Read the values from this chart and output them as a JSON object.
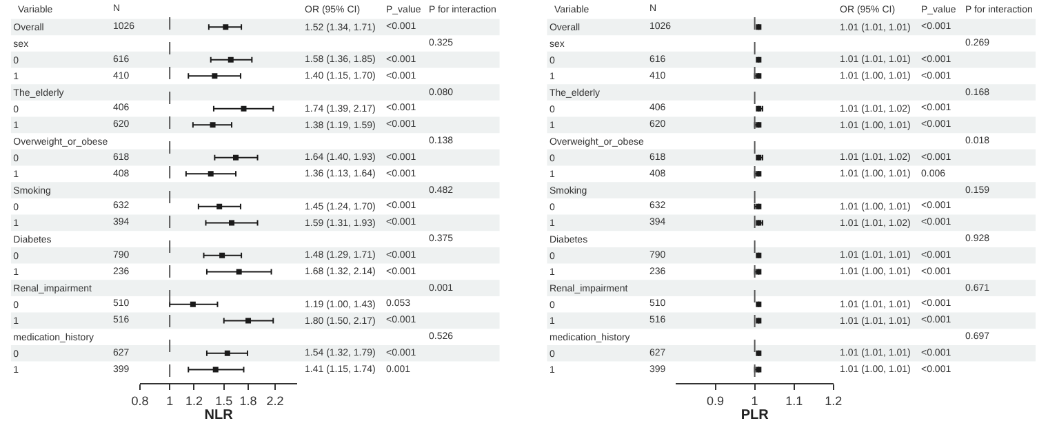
{
  "chart_data": [
    {
      "type": "scatter",
      "orientation": "horizontal",
      "color": "#1a1a1a",
      "marker": "square",
      "grid": false,
      "log": "x",
      "xlabel": "NLR",
      "xlim": [
        0.8,
        2.6
      ],
      "xticks": [
        0.8,
        1,
        1.2,
        1.5,
        1.8,
        2.2
      ],
      "ref_lines": [
        {
          "axis": "x",
          "value": 1,
          "line_style": "dashed",
          "color": "#555555"
        }
      ],
      "categories": [
        "Overall",
        "sex",
        "0",
        "1",
        "The_elderly",
        "0",
        "1",
        "Overweight_or_obese",
        "0",
        "1",
        "Smoking",
        "0",
        "1",
        "Diabetes",
        "0",
        "1",
        "Renal_impairment",
        "0",
        "1",
        "medication_history",
        "0",
        "1"
      ],
      "values": [
        1.52,
        null,
        1.58,
        1.4,
        null,
        1.74,
        1.38,
        null,
        1.64,
        1.36,
        null,
        1.45,
        1.59,
        null,
        1.48,
        1.68,
        null,
        1.19,
        1.8,
        null,
        1.54,
        1.41
      ],
      "errors": [
        [
          1.34,
          1.71
        ],
        null,
        [
          1.36,
          1.85
        ],
        [
          1.15,
          1.7
        ],
        null,
        [
          1.39,
          2.17
        ],
        [
          1.19,
          1.59
        ],
        null,
        [
          1.4,
          1.93
        ],
        [
          1.13,
          1.64
        ],
        null,
        [
          1.24,
          1.7
        ],
        [
          1.31,
          1.93
        ],
        null,
        [
          1.29,
          1.71
        ],
        [
          1.32,
          2.14
        ],
        null,
        [
          1.0,
          1.43
        ],
        [
          1.5,
          2.17
        ],
        null,
        [
          1.32,
          1.79
        ],
        [
          1.15,
          1.74
        ]
      ],
      "value_labels": [
        "1.52 (1.34, 1.71)",
        null,
        "1.58 (1.36, 1.85)",
        "1.40 (1.15, 1.70)",
        null,
        "1.74 (1.39, 2.17)",
        "1.38 (1.19, 1.59)",
        null,
        "1.64 (1.40, 1.93)",
        "1.36 (1.13, 1.64)",
        null,
        "1.45 (1.24, 1.70)",
        "1.59 (1.31, 1.93)",
        null,
        "1.48 (1.29, 1.71)",
        "1.68 (1.32, 2.14)",
        null,
        "1.19 (1.00, 1.43)",
        "1.80 (1.50, 2.17)",
        null,
        "1.54 (1.32, 1.79)",
        "1.41 (1.15, 1.74)"
      ],
      "annotations": [
        "Variable",
        "N",
        "OR (95% CI)",
        "P_value",
        "P for interaction",
        "1026",
        "<0.001",
        "616",
        "<0.001",
        "410",
        "<0.001",
        "406",
        "<0.001",
        "620",
        "<0.001",
        "618",
        "<0.001",
        "408",
        "<0.001",
        "632",
        "<0.001",
        "394",
        "<0.001",
        "790",
        "<0.001",
        "236",
        "<0.001",
        "510",
        "0.053",
        "516",
        "<0.001",
        "627",
        "<0.001",
        "399",
        "0.001",
        "0.325",
        "0.080",
        "0.138",
        "0.482",
        "0.375",
        "0.001",
        "0.526"
      ]
    },
    {
      "type": "scatter",
      "orientation": "horizontal",
      "color": "#1a1a1a",
      "marker": "square",
      "grid": false,
      "xlabel": "PLR",
      "xlim": [
        0.8,
        1.2
      ],
      "xticks": [
        0.9,
        1,
        1.1,
        1.2
      ],
      "ref_lines": [
        {
          "axis": "x",
          "value": 1,
          "line_style": "dashed",
          "color": "#555555"
        }
      ],
      "categories": [
        "Overall",
        "sex",
        "0",
        "1",
        "The_elderly",
        "0",
        "1",
        "Overweight_or_obese",
        "0",
        "1",
        "Smoking",
        "0",
        "1",
        "Diabetes",
        "0",
        "1",
        "Renal_impairment",
        "0",
        "1",
        "medication_history",
        "0",
        "1"
      ],
      "values": [
        1.01,
        null,
        1.01,
        1.01,
        null,
        1.01,
        1.01,
        null,
        1.01,
        1.01,
        null,
        1.01,
        1.01,
        null,
        1.01,
        1.01,
        null,
        1.01,
        1.01,
        null,
        1.01,
        1.01
      ],
      "errors": [
        [
          1.01,
          1.01
        ],
        null,
        [
          1.01,
          1.01
        ],
        [
          1.0,
          1.01
        ],
        null,
        [
          1.01,
          1.02
        ],
        [
          1.0,
          1.01
        ],
        null,
        [
          1.01,
          1.02
        ],
        [
          1.0,
          1.01
        ],
        null,
        [
          1.0,
          1.01
        ],
        [
          1.01,
          1.02
        ],
        null,
        [
          1.01,
          1.01
        ],
        [
          1.0,
          1.01
        ],
        null,
        [
          1.01,
          1.01
        ],
        [
          1.01,
          1.01
        ],
        null,
        [
          1.01,
          1.01
        ],
        [
          1.0,
          1.01
        ]
      ],
      "value_labels": [
        "1.01 (1.01, 1.01)",
        null,
        "1.01 (1.01, 1.01)",
        "1.01 (1.00, 1.01)",
        null,
        "1.01 (1.01, 1.02)",
        "1.01 (1.00, 1.01)",
        null,
        "1.01 (1.01, 1.02)",
        "1.01 (1.00, 1.01)",
        null,
        "1.01 (1.00, 1.01)",
        "1.01 (1.01, 1.02)",
        null,
        "1.01 (1.01, 1.01)",
        "1.01 (1.00, 1.01)",
        null,
        "1.01 (1.01, 1.01)",
        "1.01 (1.01, 1.01)",
        null,
        "1.01 (1.01, 1.01)",
        "1.01 (1.00, 1.01)"
      ],
      "annotations": [
        "Variable",
        "N",
        "OR (95% CI)",
        "P_value",
        "P for interaction",
        "1026",
        "<0.001",
        "616",
        "<0.001",
        "410",
        "<0.001",
        "406",
        "<0.001",
        "620",
        "<0.001",
        "618",
        "<0.001",
        "408",
        "0.006",
        "632",
        "<0.001",
        "394",
        "<0.001",
        "790",
        "<0.001",
        "236",
        "<0.001",
        "510",
        "<0.001",
        "516",
        "<0.001",
        "627",
        "<0.001",
        "399",
        "<0.001",
        "0.269",
        "0.168",
        "0.018",
        "0.159",
        "0.928",
        "0.671",
        "0.697"
      ]
    }
  ]
}
